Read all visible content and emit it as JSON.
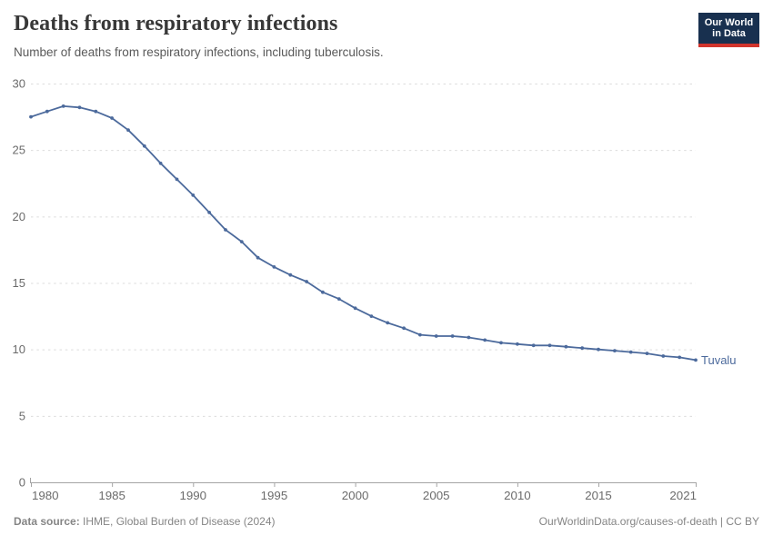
{
  "header": {
    "title": "Deaths from respiratory infections",
    "subtitle": "Number of deaths from respiratory infections, including tuberculosis."
  },
  "logo": {
    "line1": "Our World",
    "line2": "in Data"
  },
  "footer": {
    "source_label": "Data source:",
    "source_value": "IHME, Global Burden of Disease (2024)",
    "credit": "OurWorldinData.org/causes-of-death | CC BY"
  },
  "colors": {
    "series": "#4c6a9c",
    "grid": "#dcdcdc",
    "axis": "#a5a5a5",
    "tick_label": "#6b6b6b",
    "logo_bg": "#18304f",
    "logo_stripe": "#d0342c"
  },
  "chart_data": {
    "type": "line",
    "title": "Deaths from respiratory infections",
    "subtitle": "Number of deaths from respiratory infections, including tuberculosis.",
    "x": [
      1980,
      1981,
      1982,
      1983,
      1984,
      1985,
      1986,
      1987,
      1988,
      1989,
      1990,
      1991,
      1992,
      1993,
      1994,
      1995,
      1996,
      1997,
      1998,
      1999,
      2000,
      2001,
      2002,
      2003,
      2004,
      2005,
      2006,
      2007,
      2008,
      2009,
      2010,
      2011,
      2012,
      2013,
      2014,
      2015,
      2016,
      2017,
      2018,
      2019,
      2020,
      2021
    ],
    "series": [
      {
        "name": "Tuvalu",
        "color": "#4c6a9c",
        "values": [
          27.5,
          27.9,
          28.3,
          28.2,
          27.9,
          27.4,
          26.5,
          25.3,
          24.0,
          22.8,
          21.6,
          20.3,
          19.0,
          18.1,
          16.9,
          16.2,
          15.6,
          15.1,
          14.3,
          13.8,
          13.1,
          12.5,
          12.0,
          11.6,
          11.1,
          11.0,
          11.0,
          10.9,
          10.7,
          10.5,
          10.4,
          10.3,
          10.3,
          10.2,
          10.1,
          10.0,
          9.9,
          9.8,
          9.7,
          9.5,
          9.4,
          9.2
        ]
      }
    ],
    "xlim": [
      1980,
      2021
    ],
    "ylim": [
      0,
      30
    ],
    "yticks": [
      0,
      5,
      10,
      15,
      20,
      25,
      30
    ],
    "xticks": {
      "values": [
        1980,
        1985,
        1990,
        1995,
        2000,
        2005,
        2010,
        2015,
        2021
      ],
      "labels": [
        "1980",
        "1985",
        "1990",
        "1995",
        "2000",
        "2005",
        "2010",
        "2015",
        "2021"
      ]
    },
    "grid": "horizontal-dashed",
    "legend": "entity label at right end of line",
    "markers": "point per year"
  }
}
